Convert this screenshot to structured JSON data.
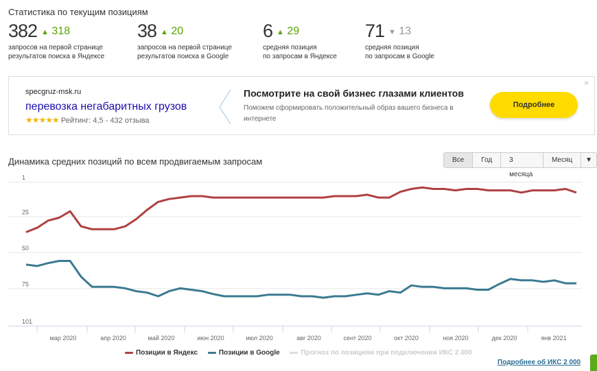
{
  "header": {
    "title": "Статистика по текущим позициям"
  },
  "stats": [
    {
      "value": "382",
      "delta": "318",
      "dir": "up",
      "label1": "запросов на первой странице",
      "label2": "результатов поиска в Яндексе"
    },
    {
      "value": "38",
      "delta": "20",
      "dir": "up",
      "label1": "запросов на первой странице",
      "label2": "результатов поиска в Google"
    },
    {
      "value": "6",
      "delta": "29",
      "dir": "up",
      "label1": "средняя позиция",
      "label2": "по запросам в Яндексе"
    },
    {
      "value": "71",
      "delta": "13",
      "dir": "down",
      "label1": "средняя позиция",
      "label2": "по запросам в Google"
    }
  ],
  "ad": {
    "site": "specgruz-msk.ru",
    "headline": "перевозка негабаритных грузов",
    "stars": "★★★★★",
    "rating": "Рейтинг: 4,5 - 432 отзыва",
    "promo_title": "Посмотрите на свой бизнес глазами клиентов",
    "promo_desc": "Поможем сформировать положительный образ вашего бизнеса в интернете",
    "button": "Подробнее",
    "close": "×"
  },
  "chart": {
    "title": "Динамика средних позиций по всем продвигаемым запросам",
    "ranges": [
      "Все",
      "Год",
      "3 месяца",
      "Месяц",
      "▼"
    ],
    "legend": [
      "Позиции в Яндекс",
      "Позиции в Google",
      "Прогноз по позициям при подключении ИКС 2 000"
    ],
    "more_link": "Подробнее об ИКС 2 000"
  },
  "chart_data": {
    "type": "line",
    "title": "Динамика средних позиций по всем продвигаемым запросам",
    "y_ticks": [
      "1",
      "25",
      "50",
      "75",
      "101"
    ],
    "ylim": [
      1,
      101
    ],
    "y_inverted": true,
    "x_ticks": [
      "мар 2020",
      "апр 2020",
      "май 2020",
      "июн 2020",
      "июл 2020",
      "авг 2020",
      "сент 2020",
      "окт 2020",
      "ноя 2020",
      "дек 2020",
      "янв 2021"
    ],
    "colors": {
      "yandex": "#b04040",
      "google": "#3a7a90",
      "forecast": "#dddddd"
    },
    "series": [
      {
        "name": "Позиции в Яндекс",
        "values": [
          36,
          33,
          28,
          26,
          21.5,
          32,
          34,
          34,
          34,
          32,
          27,
          20.5,
          15,
          13,
          12,
          11,
          11,
          12,
          12,
          12,
          12,
          12,
          12,
          12,
          12,
          12,
          12,
          12,
          11,
          11,
          11,
          10,
          12,
          12,
          8,
          6,
          5,
          6,
          6,
          7,
          6,
          6,
          7,
          7,
          7,
          8.5,
          7,
          7,
          7,
          6,
          8.5
        ]
      },
      {
        "name": "Позиции в Google",
        "values": [
          58.5,
          59.5,
          57.5,
          56,
          56,
          67,
          74,
          74,
          74,
          75,
          77,
          78,
          80.5,
          77,
          75,
          76,
          77,
          79,
          80.5,
          80.5,
          80.5,
          80.5,
          79.5,
          79.5,
          79.5,
          80.5,
          80.5,
          81.5,
          80.5,
          80.5,
          79.5,
          78.5,
          79.5,
          77,
          78,
          73,
          74,
          74,
          75,
          75,
          75,
          76,
          76,
          72,
          68.5,
          69.5,
          69.5,
          70.5,
          69.5,
          71.5,
          71.5
        ]
      }
    ]
  }
}
